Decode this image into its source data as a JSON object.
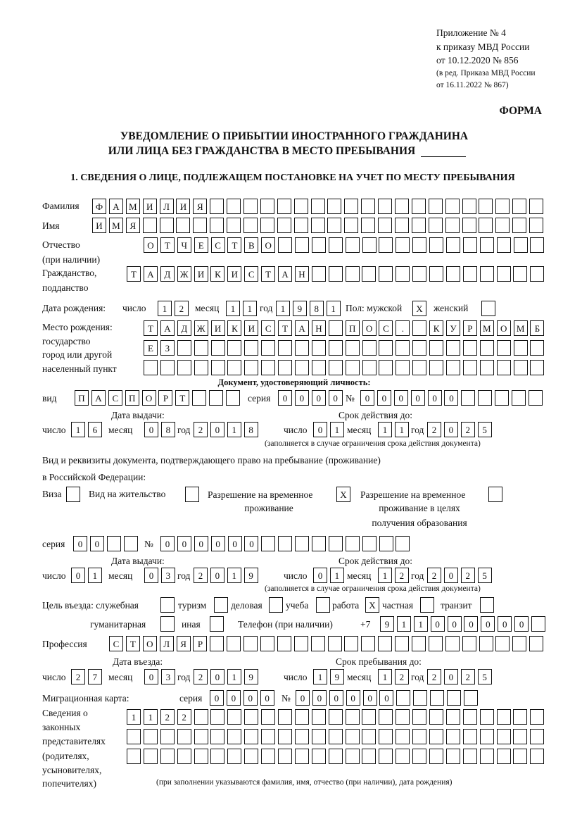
{
  "header": {
    "appendix": [
      "Приложение № 4",
      "к приказу МВД России",
      "от 10.12.2020 № 856",
      "(в ред. Приказа МВД России",
      "от 16.11.2022 № 867)"
    ],
    "form_label": "ФОРМА",
    "title": [
      "УВЕДОМЛЕНИЕ О ПРИБЫТИИ ИНОСТРАННОГО ГРАЖДАНИНА",
      "ИЛИ ЛИЦА БЕЗ ГРАЖДАНСТВА В МЕСТО ПРЕБЫВАНИЯ"
    ],
    "section1": "1. СВЕДЕНИЯ О ЛИЦЕ, ПОДЛЕЖАЩЕМ ПОСТАНОВКЕ НА УЧЕТ ПО МЕСТУ ПРЕБЫВАНИЯ"
  },
  "labels": {
    "day": "число",
    "month": "месяц",
    "year": "год",
    "series": "серия",
    "number": "№",
    "issue_date": "Дата выдачи:",
    "valid_until": "Срок действия до:",
    "validity_note": "(заполняется в случае ограничения срока действия документа)"
  },
  "surname": {
    "label": "Фамилия",
    "cells": [
      "Ф",
      "А",
      "М",
      "И",
      "Л",
      "И",
      "Я"
    ]
  },
  "name": {
    "label": "Имя",
    "cells": [
      "И",
      "М",
      "Я"
    ]
  },
  "patronymic": {
    "label": [
      "Отчество",
      "(при наличии)"
    ],
    "cells": [
      "О",
      "Т",
      "Ч",
      "Е",
      "С",
      "Т",
      "В",
      "О"
    ]
  },
  "citizenship": {
    "label": [
      "Гражданство,",
      "подданство"
    ],
    "cells": [
      "Т",
      "А",
      "Д",
      "Ж",
      "И",
      "К",
      "И",
      "С",
      "Т",
      "А",
      "Н"
    ]
  },
  "birth": {
    "label": "Дата рождения:",
    "day": [
      "1",
      "2"
    ],
    "month": [
      "1",
      "1"
    ],
    "year": [
      "1",
      "9",
      "8",
      "1"
    ],
    "sex_label": "Пол: мужской",
    "male": [
      "X"
    ],
    "female_label": "женский",
    "female": [
      ""
    ]
  },
  "birthplace": {
    "label": [
      "Место рождения:",
      "государство",
      "город или другой",
      "населенный пункт"
    ],
    "row1": [
      "Т",
      "А",
      "Д",
      "Ж",
      "И",
      "К",
      "И",
      "С",
      "Т",
      "А",
      "Н",
      "",
      "П",
      "О",
      "С",
      ".",
      "",
      "К",
      "У",
      "Р",
      "М",
      "О",
      "М",
      "Б"
    ],
    "row2": [
      "Е",
      "З"
    ],
    "row3": []
  },
  "id_doc": {
    "heading": "Документ, удостоверяющий личность:",
    "kind_label": "вид",
    "kind": [
      "П",
      "А",
      "С",
      "П",
      "О",
      "Р",
      "Т"
    ],
    "series": [
      "0",
      "0",
      "0",
      "0"
    ],
    "number": [
      "0",
      "0",
      "0",
      "0",
      "0",
      "0"
    ],
    "issue": {
      "day": [
        "1",
        "6"
      ],
      "month": [
        "0",
        "8"
      ],
      "year": [
        "2",
        "0",
        "1",
        "8"
      ]
    },
    "valid": {
      "day": [
        "0",
        "1"
      ],
      "month": [
        "1",
        "1"
      ],
      "year": [
        "2",
        "0",
        "2",
        "5"
      ]
    }
  },
  "stay_doc": {
    "heading": [
      "Вид и реквизиты документа, подтверждающего право на пребывание (проживание)",
      "в Российской Федерации:"
    ],
    "visa_label": "Виза",
    "visa": [
      ""
    ],
    "residence_label": "Вид на жительство",
    "residence": [
      ""
    ],
    "temp_label": [
      "Разрешение на временное",
      "проживание"
    ],
    "temp": [
      "X"
    ],
    "temp_edu_label": [
      "Разрешение на временное",
      "проживание в целях",
      "получения образования"
    ],
    "temp_edu": [
      ""
    ],
    "series": [
      "0",
      "0"
    ],
    "number": [
      "0",
      "0",
      "0",
      "0",
      "0",
      "0"
    ],
    "issue": {
      "day": [
        "0",
        "1"
      ],
      "month": [
        "0",
        "3"
      ],
      "year": [
        "2",
        "0",
        "1",
        "9"
      ]
    },
    "valid": {
      "day": [
        "0",
        "1"
      ],
      "month": [
        "1",
        "2"
      ],
      "year": [
        "2",
        "0",
        "2",
        "5"
      ]
    }
  },
  "purpose": {
    "label": "Цель въезда: служебная",
    "service": [
      ""
    ],
    "tourism_label": "туризм",
    "tourism": [
      ""
    ],
    "business_label": "деловая",
    "business": [
      ""
    ],
    "study_label": "учеба",
    "study": [
      ""
    ],
    "work_label": "работа",
    "work": [
      "X"
    ],
    "private_label": "частная",
    "private": [
      ""
    ],
    "transit_label": "транзит",
    "transit": [
      ""
    ],
    "humanitarian_label": "гуманитарная",
    "humanitarian": [
      ""
    ],
    "other_label": "иная",
    "other": [
      ""
    ]
  },
  "phone": {
    "label": "Телефон (при наличии)",
    "prefix": "+7",
    "cells": [
      "9",
      "1",
      "1",
      "0",
      "0",
      "0",
      "0",
      "0",
      "0"
    ]
  },
  "profession": {
    "label": "Профессия",
    "cells": [
      "С",
      "Т",
      "О",
      "Л",
      "Я",
      "Р"
    ]
  },
  "entry": {
    "entry_label": "Дата въезда:",
    "stay_label": "Срок пребывания до:",
    "entry": {
      "day": [
        "2",
        "7"
      ],
      "month": [
        "0",
        "3"
      ],
      "year": [
        "2",
        "0",
        "1",
        "9"
      ]
    },
    "stay": {
      "day": [
        "1",
        "9"
      ],
      "month": [
        "1",
        "2"
      ],
      "year": [
        "2",
        "0",
        "2",
        "5"
      ]
    }
  },
  "migration_card": {
    "label": "Миграционная карта:",
    "series": [
      "0",
      "0",
      "0",
      "0"
    ],
    "number": [
      "0",
      "0",
      "0",
      "0",
      "0",
      "0"
    ]
  },
  "representatives": {
    "label": [
      "Сведения о",
      "законных",
      "представителях",
      "(родителях,",
      "усыновителях,",
      "попечителях)"
    ],
    "row1": [
      "1",
      "1",
      "2",
      "2"
    ],
    "row2": [],
    "row3": [],
    "note": "(при заполнении указываются фамилия, имя, отчество (при наличии), дата рождения)"
  }
}
